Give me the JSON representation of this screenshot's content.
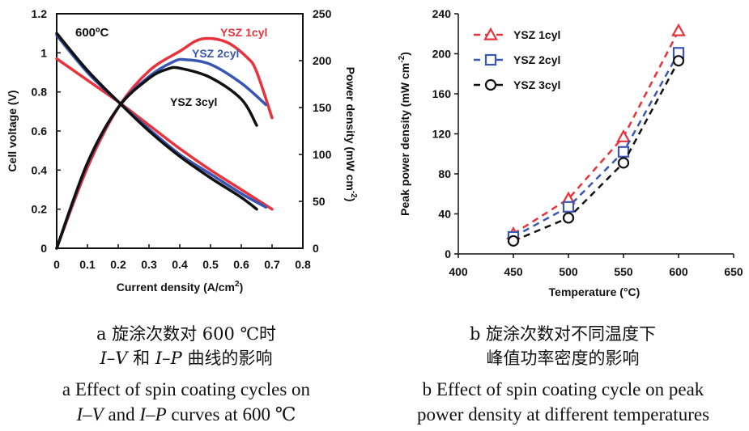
{
  "chart_data": [
    {
      "type": "line",
      "annotation": "600ºC",
      "xlabel": "Current density (A/cm²)",
      "ylabel": "Cell voltage (V)",
      "y2label": "Power density (mW cm⁻²)",
      "xlim": [
        0,
        0.8
      ],
      "ylim": [
        0,
        1.2
      ],
      "y2lim": [
        0,
        250
      ],
      "xticks": [
        "0",
        "0.1",
        "0.2",
        "0.3",
        "0.4",
        "0.5",
        "0.6",
        "0.7",
        "0.8"
      ],
      "yticks": [
        "0",
        "0.2",
        "0.4",
        "0.6",
        "0.8",
        "1",
        "1.2"
      ],
      "y2ticks": [
        "0",
        "50",
        "100",
        "150",
        "200",
        "250"
      ],
      "series": [
        {
          "name": "YSZ 1cyl",
          "color": "#e8323c",
          "iv": [
            [
              0,
              0.97
            ],
            [
              0.1,
              0.86
            ],
            [
              0.2,
              0.75
            ],
            [
              0.3,
              0.63
            ],
            [
              0.4,
              0.51
            ],
            [
              0.5,
              0.4
            ],
            [
              0.6,
              0.3
            ],
            [
              0.7,
              0.2
            ]
          ],
          "ip": [
            [
              0,
              0
            ],
            [
              0.1,
              86
            ],
            [
              0.2,
              150
            ],
            [
              0.3,
              189
            ],
            [
              0.4,
              210
            ],
            [
              0.47,
              223
            ],
            [
              0.55,
              220
            ],
            [
              0.62,
              203
            ],
            [
              0.65,
              188
            ],
            [
              0.7,
              139
            ]
          ]
        },
        {
          "name": "YSZ 2cyl",
          "color": "#3a56b5",
          "iv": [
            [
              0,
              1.09
            ],
            [
              0.1,
              0.9
            ],
            [
              0.2,
              0.75
            ],
            [
              0.3,
              0.61
            ],
            [
              0.4,
              0.48
            ],
            [
              0.5,
              0.38
            ],
            [
              0.6,
              0.28
            ],
            [
              0.68,
              0.21
            ]
          ],
          "ip": [
            [
              0,
              0
            ],
            [
              0.1,
              90
            ],
            [
              0.2,
              150
            ],
            [
              0.3,
              183
            ],
            [
              0.38,
              199
            ],
            [
              0.42,
              201
            ],
            [
              0.5,
              196
            ],
            [
              0.6,
              176
            ],
            [
              0.68,
              153
            ]
          ]
        },
        {
          "name": "YSZ 3cyl",
          "color": "#111111",
          "iv": [
            [
              0,
              1.1
            ],
            [
              0.1,
              0.91
            ],
            [
              0.2,
              0.75
            ],
            [
              0.3,
              0.6
            ],
            [
              0.4,
              0.47
            ],
            [
              0.5,
              0.36
            ],
            [
              0.6,
              0.26
            ],
            [
              0.65,
              0.2
            ]
          ],
          "ip": [
            [
              0,
              0
            ],
            [
              0.1,
              91
            ],
            [
              0.2,
              150
            ],
            [
              0.3,
              181
            ],
            [
              0.36,
              191
            ],
            [
              0.4,
              192
            ],
            [
              0.5,
              182
            ],
            [
              0.6,
              159
            ],
            [
              0.65,
              131
            ]
          ]
        }
      ]
    },
    {
      "type": "line",
      "xlabel": "Temperature (°C)",
      "ylabel": "Peak power density (mW cm⁻²)",
      "xlim": [
        400,
        650
      ],
      "ylim": [
        0,
        240
      ],
      "xticks": [
        "400",
        "450",
        "500",
        "550",
        "600",
        "650"
      ],
      "yticks": [
        "0",
        "40",
        "80",
        "120",
        "160",
        "200",
        "240"
      ],
      "legend_position": "top-left",
      "x": [
        450,
        500,
        550,
        600
      ],
      "series": [
        {
          "name": "YSZ 1cyl",
          "color": "#e8323c",
          "marker": "triangle",
          "values": [
            20,
            55,
            117,
            223
          ]
        },
        {
          "name": "YSZ 2cyl",
          "color": "#3a56b5",
          "marker": "square",
          "values": [
            17,
            47,
            102,
            201
          ]
        },
        {
          "name": "YSZ 3cyl",
          "color": "#111111",
          "marker": "circle",
          "values": [
            13,
            36,
            91,
            193
          ]
        }
      ]
    }
  ],
  "captions": {
    "a_zh_1": "a  旋涂次数对 600 ℃时",
    "a_zh_2_p1": "I–V",
    "a_zh_2_p2": " 和 ",
    "a_zh_2_p3": "I–P",
    "a_zh_2_p4": " 曲线的影响",
    "a_en_1": "a  Effect of spin coating cycles on",
    "a_en_2_p1": "I–V",
    "a_en_2_p2": " and ",
    "a_en_2_p3": "I–P",
    "a_en_2_p4": " curves at 600 ℃",
    "b_zh_1": "b  旋涂次数对不同温度下",
    "b_zh_2": "峰值功率密度的影响",
    "b_en_1": "b  Effect of spin coating cycle on peak",
    "b_en_2": "power density at different temperatures"
  }
}
